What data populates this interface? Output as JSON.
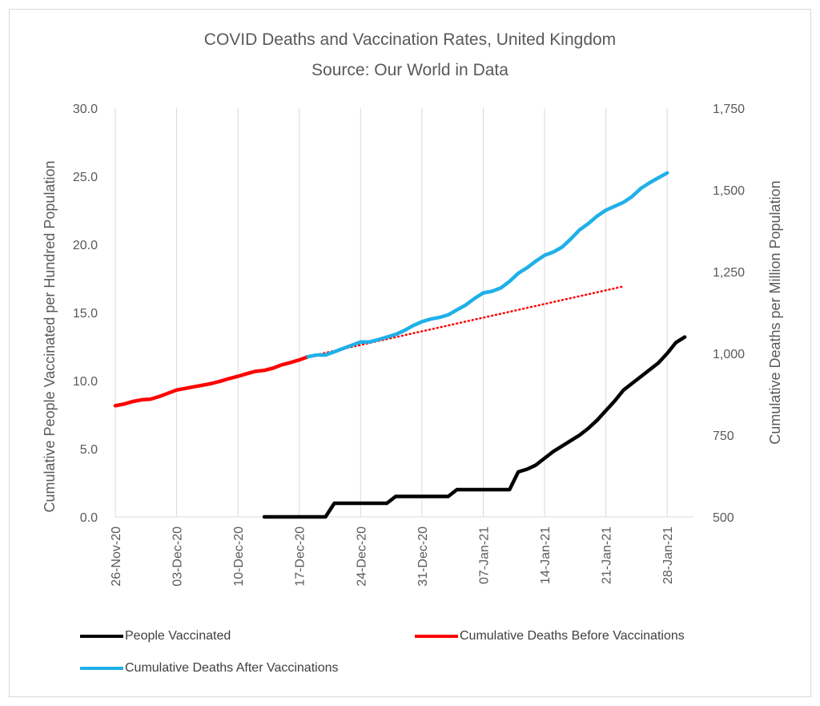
{
  "title_line1": "COVID Deaths and Vaccination Rates, United Kingdom",
  "title_line2": "Source: Our World in Data",
  "chart_data": {
    "type": "line",
    "x_start": "2020-11-26",
    "x_end": "2021-01-31",
    "x_tick_labels": [
      {
        "label": "26-Nov-20",
        "date": "2020-11-26"
      },
      {
        "label": "03-Dec-20",
        "date": "2020-12-03"
      },
      {
        "label": "10-Dec-20",
        "date": "2020-12-10"
      },
      {
        "label": "17-Dec-20",
        "date": "2020-12-17"
      },
      {
        "label": "24-Dec-20",
        "date": "2020-12-24"
      },
      {
        "label": "31-Dec-20",
        "date": "2020-12-31"
      },
      {
        "label": "07-Jan-21",
        "date": "2021-01-07"
      },
      {
        "label": "14-Jan-21",
        "date": "2021-01-14"
      },
      {
        "label": "21-Jan-21",
        "date": "2021-01-21"
      },
      {
        "label": "28-Jan-21",
        "date": "2021-01-28"
      }
    ],
    "y_left": {
      "label": "Cumulative People Vaccinated per Hundred Population",
      "min": 0,
      "max": 30,
      "ticks": [
        "0.0",
        "5.0",
        "10.0",
        "15.0",
        "20.0",
        "25.0",
        "30.0"
      ]
    },
    "y_right": {
      "label": "Cumulative Deaths per Million Population",
      "min": 500,
      "max": 1750,
      "ticks": [
        "500",
        "750",
        "1,000",
        "1,250",
        "1,500",
        "1,750"
      ]
    },
    "grid": "vertical",
    "legend_position": "bottom",
    "series": [
      {
        "name": "People Vaccinated",
        "axis": "left",
        "color": "#000000",
        "style": "solid",
        "points": [
          [
            "2020-12-13",
            0.0
          ],
          [
            "2020-12-20",
            0.0
          ],
          [
            "2020-12-21",
            1.0
          ],
          [
            "2020-12-27",
            1.0
          ],
          [
            "2020-12-28",
            1.5
          ],
          [
            "2021-01-03",
            1.5
          ],
          [
            "2021-01-04",
            2.0
          ],
          [
            "2021-01-10",
            2.0
          ],
          [
            "2021-01-11",
            3.3
          ],
          [
            "2021-01-12",
            3.5
          ],
          [
            "2021-01-13",
            3.8
          ],
          [
            "2021-01-14",
            4.3
          ],
          [
            "2021-01-15",
            4.8
          ],
          [
            "2021-01-16",
            5.2
          ],
          [
            "2021-01-17",
            5.6
          ],
          [
            "2021-01-18",
            6.0
          ],
          [
            "2021-01-19",
            6.5
          ],
          [
            "2021-01-20",
            7.1
          ],
          [
            "2021-01-21",
            7.8
          ],
          [
            "2021-01-22",
            8.5
          ],
          [
            "2021-01-23",
            9.3
          ],
          [
            "2021-01-24",
            9.8
          ],
          [
            "2021-01-25",
            10.3
          ],
          [
            "2021-01-26",
            10.8
          ],
          [
            "2021-01-27",
            11.3
          ],
          [
            "2021-01-28",
            12.0
          ],
          [
            "2021-01-29",
            12.8
          ],
          [
            "2021-01-30",
            13.2
          ]
        ]
      },
      {
        "name": "Cumulative Deaths Before Vaccinations",
        "axis": "right",
        "color": "#ff0000",
        "style": "solid",
        "points": [
          [
            "2020-11-26",
            840
          ],
          [
            "2020-11-27",
            845
          ],
          [
            "2020-11-28",
            853
          ],
          [
            "2020-11-29",
            858
          ],
          [
            "2020-11-30",
            860
          ],
          [
            "2020-12-01",
            868
          ],
          [
            "2020-12-02",
            878
          ],
          [
            "2020-12-03",
            888
          ],
          [
            "2020-12-04",
            893
          ],
          [
            "2020-12-05",
            898
          ],
          [
            "2020-12-06",
            903
          ],
          [
            "2020-12-07",
            908
          ],
          [
            "2020-12-08",
            915
          ],
          [
            "2020-12-09",
            923
          ],
          [
            "2020-12-10",
            930
          ],
          [
            "2020-12-11",
            938
          ],
          [
            "2020-12-12",
            945
          ],
          [
            "2020-12-13",
            948
          ],
          [
            "2020-12-14",
            955
          ],
          [
            "2020-12-15",
            965
          ],
          [
            "2020-12-16",
            972
          ],
          [
            "2020-12-17",
            980
          ],
          [
            "2020-12-18",
            990
          ]
        ]
      },
      {
        "name": "Cumulative Deaths After Vaccinations",
        "axis": "right",
        "color": "#1fb0e8",
        "style": "solid",
        "points": [
          [
            "2020-12-18",
            990
          ],
          [
            "2020-12-19",
            995
          ],
          [
            "2020-12-20",
            995
          ],
          [
            "2020-12-21",
            1005
          ],
          [
            "2020-12-22",
            1015
          ],
          [
            "2020-12-23",
            1025
          ],
          [
            "2020-12-24",
            1035
          ],
          [
            "2020-12-25",
            1035
          ],
          [
            "2020-12-26",
            1042
          ],
          [
            "2020-12-27",
            1050
          ],
          [
            "2020-12-28",
            1058
          ],
          [
            "2020-12-29",
            1070
          ],
          [
            "2020-12-30",
            1085
          ],
          [
            "2020-12-31",
            1097
          ],
          [
            "2021-01-01",
            1105
          ],
          [
            "2021-01-02",
            1110
          ],
          [
            "2021-01-03",
            1118
          ],
          [
            "2021-01-04",
            1133
          ],
          [
            "2021-01-05",
            1148
          ],
          [
            "2021-01-06",
            1168
          ],
          [
            "2021-01-07",
            1185
          ],
          [
            "2021-01-08",
            1190
          ],
          [
            "2021-01-09",
            1200
          ],
          [
            "2021-01-10",
            1220
          ],
          [
            "2021-01-11",
            1245
          ],
          [
            "2021-01-12",
            1262
          ],
          [
            "2021-01-13",
            1282
          ],
          [
            "2021-01-14",
            1300
          ],
          [
            "2021-01-15",
            1310
          ],
          [
            "2021-01-16",
            1325
          ],
          [
            "2021-01-17",
            1350
          ],
          [
            "2021-01-18",
            1378
          ],
          [
            "2021-01-19",
            1397
          ],
          [
            "2021-01-20",
            1420
          ],
          [
            "2021-01-21",
            1438
          ],
          [
            "2021-01-22",
            1450
          ],
          [
            "2021-01-23",
            1462
          ],
          [
            "2021-01-24",
            1480
          ],
          [
            "2021-01-25",
            1505
          ],
          [
            "2021-01-26",
            1522
          ],
          [
            "2021-01-27",
            1537
          ],
          [
            "2021-01-28",
            1552
          ]
        ]
      },
      {
        "name": "",
        "axis": "right",
        "color": "#ff0000",
        "style": "dotted",
        "points": [
          [
            "2020-12-18",
            990
          ],
          [
            "2021-01-23",
            1205
          ]
        ]
      }
    ]
  }
}
